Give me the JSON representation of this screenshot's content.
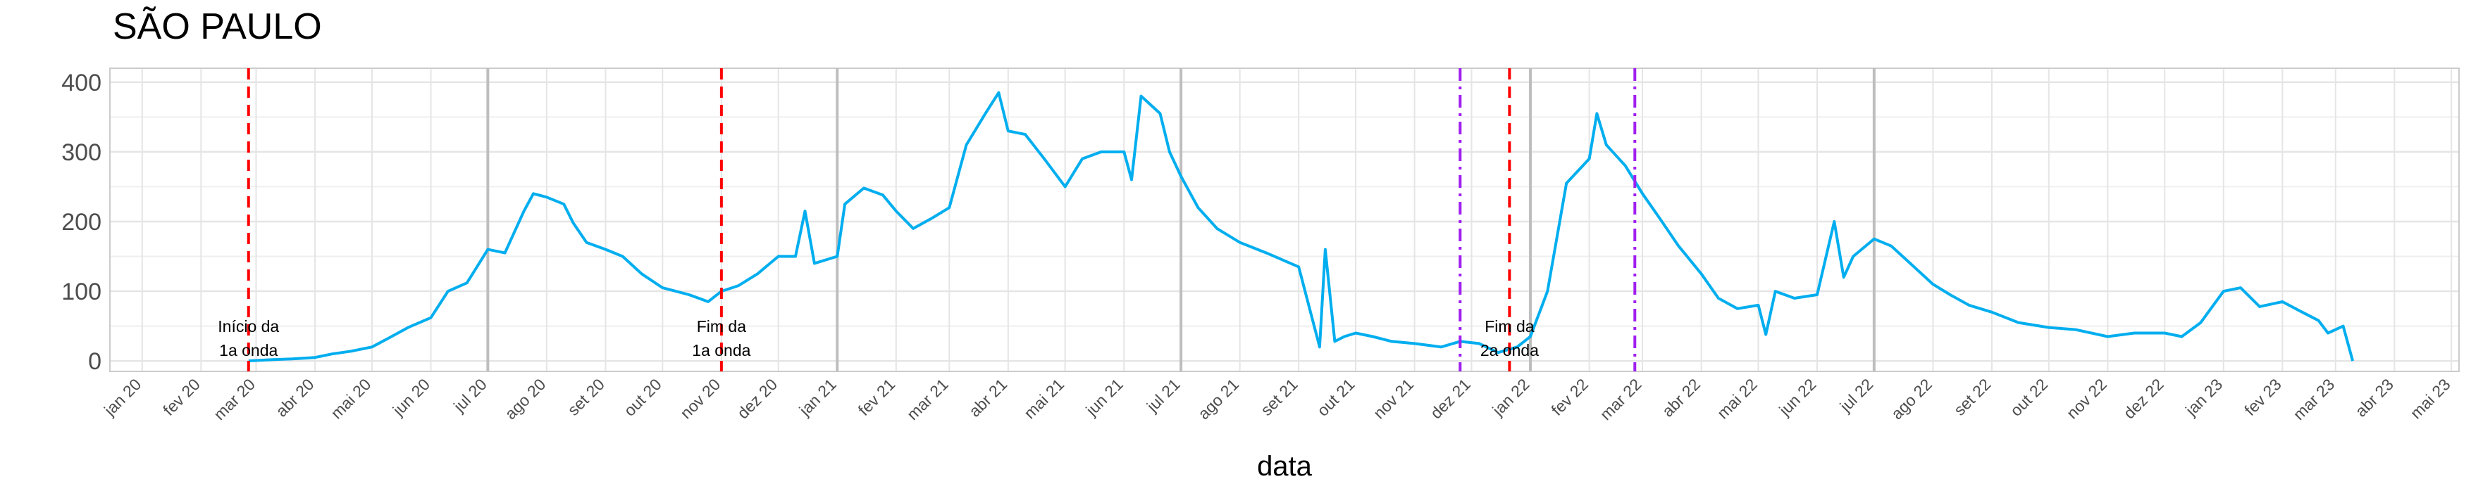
{
  "chart_data": {
    "type": "line",
    "title": "SÃO PAULO",
    "xlabel": "data",
    "ylabel": "",
    "ylim": [
      -15,
      420
    ],
    "xlim": [
      "2019-12-15",
      "2023-05-05"
    ],
    "grid": true,
    "yticks": [
      0,
      100,
      200,
      300,
      400
    ],
    "xtick_labels": [
      {
        "date": "2020-01-01",
        "label": "jan 20"
      },
      {
        "date": "2020-02-01",
        "label": "fev 20"
      },
      {
        "date": "2020-03-01",
        "label": "mar 20"
      },
      {
        "date": "2020-04-01",
        "label": "abr 20"
      },
      {
        "date": "2020-05-01",
        "label": "mai 20"
      },
      {
        "date": "2020-06-01",
        "label": "jun 20"
      },
      {
        "date": "2020-07-01",
        "label": "jul 20"
      },
      {
        "date": "2020-08-01",
        "label": "ago 20"
      },
      {
        "date": "2020-09-01",
        "label": "set 20"
      },
      {
        "date": "2020-10-01",
        "label": "out 20"
      },
      {
        "date": "2020-11-01",
        "label": "nov 20"
      },
      {
        "date": "2020-12-01",
        "label": "dez 20"
      },
      {
        "date": "2021-01-01",
        "label": "jan 21"
      },
      {
        "date": "2021-02-01",
        "label": "fev 21"
      },
      {
        "date": "2021-03-01",
        "label": "mar 21"
      },
      {
        "date": "2021-04-01",
        "label": "abr 21"
      },
      {
        "date": "2021-05-01",
        "label": "mai 21"
      },
      {
        "date": "2021-06-01",
        "label": "jun 21"
      },
      {
        "date": "2021-07-01",
        "label": "jul 21"
      },
      {
        "date": "2021-08-01",
        "label": "ago 21"
      },
      {
        "date": "2021-09-01",
        "label": "set 21"
      },
      {
        "date": "2021-10-01",
        "label": "out 21"
      },
      {
        "date": "2021-11-01",
        "label": "nov 21"
      },
      {
        "date": "2021-12-01",
        "label": "dez 21"
      },
      {
        "date": "2022-01-01",
        "label": "jan 22"
      },
      {
        "date": "2022-02-01",
        "label": "fev 22"
      },
      {
        "date": "2022-03-01",
        "label": "mar 22"
      },
      {
        "date": "2022-04-01",
        "label": "abr 22"
      },
      {
        "date": "2022-05-01",
        "label": "mai 22"
      },
      {
        "date": "2022-06-01",
        "label": "jun 22"
      },
      {
        "date": "2022-07-01",
        "label": "jul 22"
      },
      {
        "date": "2022-08-01",
        "label": "ago 22"
      },
      {
        "date": "2022-09-01",
        "label": "set 22"
      },
      {
        "date": "2022-10-01",
        "label": "out 22"
      },
      {
        "date": "2022-11-01",
        "label": "nov 22"
      },
      {
        "date": "2022-12-01",
        "label": "dez 22"
      },
      {
        "date": "2023-01-01",
        "label": "jan 23"
      },
      {
        "date": "2023-02-01",
        "label": "fev 23"
      },
      {
        "date": "2023-03-01",
        "label": "mar 23"
      },
      {
        "date": "2023-04-01",
        "label": "abr 23"
      },
      {
        "date": "2023-05-01",
        "label": "mai 23"
      }
    ],
    "semester_lines": [
      "2020-07-01",
      "2021-01-01",
      "2021-07-01",
      "2022-01-01",
      "2022-07-01"
    ],
    "vlines_red": [
      "2020-02-26",
      "2020-11-01",
      "2021-12-21"
    ],
    "vlines_purple": [
      "2021-11-25",
      "2022-02-25"
    ],
    "annotations": [
      {
        "date": "2020-02-26",
        "lines": [
          "Início da",
          "1a onda"
        ]
      },
      {
        "date": "2020-11-01",
        "lines": [
          "Fim da",
          "1a onda"
        ]
      },
      {
        "date": "2021-12-21",
        "lines": [
          "Fim da",
          "2a onda"
        ]
      }
    ],
    "colors": {
      "series": "#00AEEF",
      "red_line": "#FF0000",
      "purple_line": "#A020F0",
      "grid": "#E5E5E5",
      "semester": "#BEBEBE"
    },
    "series": [
      {
        "x": [
          "2020-02-26",
          "2020-03-10",
          "2020-03-20",
          "2020-04-01",
          "2020-04-10",
          "2020-04-20",
          "2020-05-01",
          "2020-05-10",
          "2020-05-20",
          "2020-06-01",
          "2020-06-10",
          "2020-06-20",
          "2020-07-01",
          "2020-07-10",
          "2020-07-20",
          "2020-07-25",
          "2020-08-01",
          "2020-08-10",
          "2020-08-15",
          "2020-08-22",
          "2020-09-01",
          "2020-09-10",
          "2020-09-20",
          "2020-10-01",
          "2020-10-15",
          "2020-10-25",
          "2020-11-01",
          "2020-11-10",
          "2020-11-20",
          "2020-12-01",
          "2020-12-10",
          "2020-12-15",
          "2020-12-20",
          "2021-01-01",
          "2021-01-05",
          "2021-01-15",
          "2021-01-25",
          "2021-02-01",
          "2021-02-10",
          "2021-02-20",
          "2021-03-01",
          "2021-03-10",
          "2021-03-20",
          "2021-03-27",
          "2021-04-01",
          "2021-04-10",
          "2021-04-20",
          "2021-05-01",
          "2021-05-10",
          "2021-05-20",
          "2021-06-01",
          "2021-06-05",
          "2021-06-10",
          "2021-06-20",
          "2021-06-25",
          "2021-07-01",
          "2021-07-10",
          "2021-07-20",
          "2021-08-01",
          "2021-08-15",
          "2021-09-01",
          "2021-09-12",
          "2021-09-15",
          "2021-09-20",
          "2021-09-25",
          "2021-10-01",
          "2021-10-10",
          "2021-10-20",
          "2021-11-01",
          "2021-11-15",
          "2021-11-25",
          "2021-12-05",
          "2021-12-15",
          "2021-12-25",
          "2022-01-01",
          "2022-01-10",
          "2022-01-20",
          "2022-02-01",
          "2022-02-05",
          "2022-02-10",
          "2022-02-20",
          "2022-03-01",
          "2022-03-10",
          "2022-03-20",
          "2022-04-01",
          "2022-04-10",
          "2022-04-20",
          "2022-05-01",
          "2022-05-05",
          "2022-05-10",
          "2022-05-20",
          "2022-06-01",
          "2022-06-10",
          "2022-06-15",
          "2022-06-20",
          "2022-07-01",
          "2022-07-10",
          "2022-07-20",
          "2022-08-01",
          "2022-08-10",
          "2022-08-20",
          "2022-09-01",
          "2022-09-15",
          "2022-10-01",
          "2022-10-15",
          "2022-11-01",
          "2022-11-15",
          "2022-12-01",
          "2022-12-10",
          "2022-12-20",
          "2023-01-01",
          "2023-01-10",
          "2023-01-20",
          "2023-02-01",
          "2023-02-10",
          "2023-02-20",
          "2023-02-25",
          "2023-03-01",
          "2023-03-05",
          "2023-03-10"
        ],
        "values": [
          0,
          2,
          3,
          5,
          10,
          14,
          20,
          33,
          48,
          62,
          100,
          112,
          160,
          155,
          215,
          240,
          235,
          225,
          198,
          170,
          160,
          150,
          125,
          105,
          95,
          85,
          100,
          108,
          125,
          150,
          150,
          215,
          140,
          150,
          225,
          248,
          238,
          215,
          190,
          205,
          220,
          310,
          355,
          385,
          330,
          325,
          290,
          250,
          290,
          300,
          300,
          260,
          380,
          355,
          300,
          265,
          220,
          190,
          170,
          155,
          135,
          20,
          160,
          28,
          35,
          40,
          35,
          28,
          25,
          20,
          28,
          25,
          12,
          20,
          35,
          100,
          255,
          290,
          355,
          310,
          280,
          240,
          205,
          165,
          125,
          90,
          75,
          80,
          38,
          100,
          90,
          95,
          200,
          120,
          150,
          175,
          165,
          140,
          110,
          95,
          80,
          70,
          55,
          48,
          45,
          35,
          40,
          40,
          35,
          55,
          100,
          105,
          78,
          85,
          72,
          58,
          40,
          45,
          50,
          0
        ]
      }
    ]
  }
}
